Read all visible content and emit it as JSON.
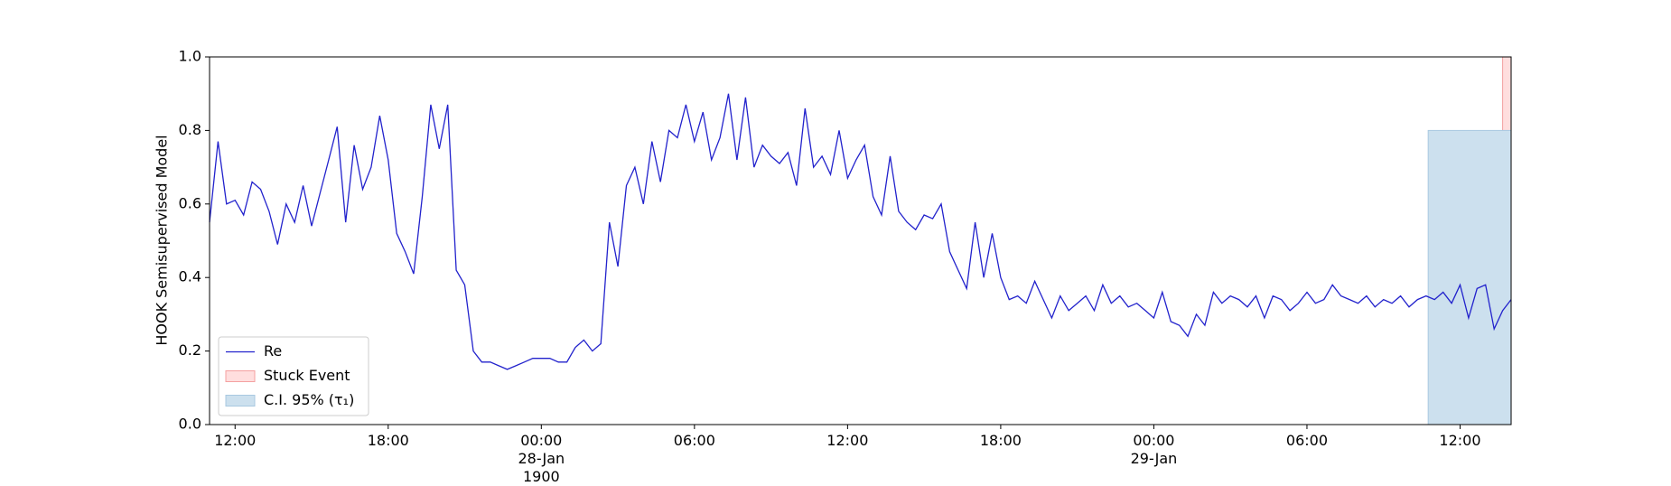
{
  "chart_data": {
    "type": "line",
    "ylabel": "HOOK Semisupervised Model",
    "xlim": [
      "1900-01-27 11:00",
      "1900-01-29 14:00"
    ],
    "xticks": [
      {
        "value": "1900-01-27 12:00",
        "label": "12:00"
      },
      {
        "value": "1900-01-27 18:00",
        "label": "18:00"
      },
      {
        "value": "1900-01-28 00:00",
        "label": "00:00\n28-Jan\n1900"
      },
      {
        "value": "1900-01-28 06:00",
        "label": "06:00"
      },
      {
        "value": "1900-01-28 12:00",
        "label": "12:00"
      },
      {
        "value": "1900-01-28 18:00",
        "label": "18:00"
      },
      {
        "value": "1900-01-29 00:00",
        "label": "00:00\n29-Jan"
      },
      {
        "value": "1900-01-29 06:00",
        "label": "06:00"
      },
      {
        "value": "1900-01-29 12:00",
        "label": "12:00"
      }
    ],
    "ylim": [
      0,
      1
    ],
    "yticks": [
      {
        "value": 0,
        "label": "0.0"
      },
      0.2,
      0.4,
      0.6,
      0.8,
      {
        "value": 1,
        "label": "1.0"
      }
    ],
    "grid": false,
    "legend": "lower left",
    "x": [
      "1900-01-27 11:00",
      "1900-01-27 11:20",
      "1900-01-27 11:40",
      "1900-01-27 12:00",
      "1900-01-27 12:20",
      "1900-01-27 12:40",
      "1900-01-27 13:00",
      "1900-01-27 13:20",
      "1900-01-27 13:40",
      "1900-01-27 14:00",
      "1900-01-27 14:20",
      "1900-01-27 14:40",
      "1900-01-27 15:00",
      "1900-01-27 15:20",
      "1900-01-27 15:40",
      "1900-01-27 16:00",
      "1900-01-27 16:20",
      "1900-01-27 16:40",
      "1900-01-27 17:00",
      "1900-01-27 17:20",
      "1900-01-27 17:40",
      "1900-01-27 18:00",
      "1900-01-27 18:20",
      "1900-01-27 18:40",
      "1900-01-27 19:00",
      "1900-01-27 19:20",
      "1900-01-27 19:40",
      "1900-01-27 20:00",
      "1900-01-27 20:20",
      "1900-01-27 20:40",
      "1900-01-27 21:00",
      "1900-01-27 21:20",
      "1900-01-27 21:40",
      "1900-01-27 22:00",
      "1900-01-27 22:20",
      "1900-01-27 22:40",
      "1900-01-27 23:00",
      "1900-01-27 23:20",
      "1900-01-27 23:40",
      "1900-01-28 00:00",
      "1900-01-28 00:20",
      "1900-01-28 00:40",
      "1900-01-28 01:00",
      "1900-01-28 01:20",
      "1900-01-28 01:40",
      "1900-01-28 02:00",
      "1900-01-28 02:20",
      "1900-01-28 02:40",
      "1900-01-28 03:00",
      "1900-01-28 03:20",
      "1900-01-28 03:40",
      "1900-01-28 04:00",
      "1900-01-28 04:20",
      "1900-01-28 04:40",
      "1900-01-28 05:00",
      "1900-01-28 05:20",
      "1900-01-28 05:40",
      "1900-01-28 06:00",
      "1900-01-28 06:20",
      "1900-01-28 06:40",
      "1900-01-28 07:00",
      "1900-01-28 07:20",
      "1900-01-28 07:40",
      "1900-01-28 08:00",
      "1900-01-28 08:20",
      "1900-01-28 08:40",
      "1900-01-28 09:00",
      "1900-01-28 09:20",
      "1900-01-28 09:40",
      "1900-01-28 10:00",
      "1900-01-28 10:20",
      "1900-01-28 10:40",
      "1900-01-28 11:00",
      "1900-01-28 11:20",
      "1900-01-28 11:40",
      "1900-01-28 12:00",
      "1900-01-28 12:20",
      "1900-01-28 12:40",
      "1900-01-28 13:00",
      "1900-01-28 13:20",
      "1900-01-28 13:40",
      "1900-01-28 14:00",
      "1900-01-28 14:20",
      "1900-01-28 14:40",
      "1900-01-28 15:00",
      "1900-01-28 15:20",
      "1900-01-28 15:40",
      "1900-01-28 16:00",
      "1900-01-28 16:20",
      "1900-01-28 16:40",
      "1900-01-28 17:00",
      "1900-01-28 17:20",
      "1900-01-28 17:40",
      "1900-01-28 18:00",
      "1900-01-28 18:20",
      "1900-01-28 18:40",
      "1900-01-28 19:00",
      "1900-01-28 19:20",
      "1900-01-28 19:40",
      "1900-01-28 20:00",
      "1900-01-28 20:20",
      "1900-01-28 20:40",
      "1900-01-28 21:00",
      "1900-01-28 21:20",
      "1900-01-28 21:40",
      "1900-01-28 22:00",
      "1900-01-28 22:20",
      "1900-01-28 22:40",
      "1900-01-28 23:00",
      "1900-01-28 23:20",
      "1900-01-28 23:40",
      "1900-01-29 00:00",
      "1900-01-29 00:20",
      "1900-01-29 00:40",
      "1900-01-29 01:00",
      "1900-01-29 01:20",
      "1900-01-29 01:40",
      "1900-01-29 02:00",
      "1900-01-29 02:20",
      "1900-01-29 02:40",
      "1900-01-29 03:00",
      "1900-01-29 03:20",
      "1900-01-29 03:40",
      "1900-01-29 04:00",
      "1900-01-29 04:20",
      "1900-01-29 04:40",
      "1900-01-29 05:00",
      "1900-01-29 05:20",
      "1900-01-29 05:40",
      "1900-01-29 06:00",
      "1900-01-29 06:20",
      "1900-01-29 06:40",
      "1900-01-29 07:00",
      "1900-01-29 07:20",
      "1900-01-29 07:40",
      "1900-01-29 08:00",
      "1900-01-29 08:20",
      "1900-01-29 08:40",
      "1900-01-29 09:00",
      "1900-01-29 09:20",
      "1900-01-29 09:40",
      "1900-01-29 10:00",
      "1900-01-29 10:20",
      "1900-01-29 10:40",
      "1900-01-29 11:00",
      "1900-01-29 11:20",
      "1900-01-29 11:40",
      "1900-01-29 12:00",
      "1900-01-29 12:20",
      "1900-01-29 12:40",
      "1900-01-29 13:00",
      "1900-01-29 13:20",
      "1900-01-29 13:40",
      "1900-01-29 14:00"
    ],
    "series": [
      {
        "name": "Re",
        "color": "#2222cc",
        "values": [
          0.55,
          0.77,
          0.6,
          0.61,
          0.57,
          0.66,
          0.64,
          0.58,
          0.49,
          0.6,
          0.55,
          0.65,
          0.54,
          0.63,
          0.72,
          0.81,
          0.55,
          0.76,
          0.64,
          0.7,
          0.84,
          0.72,
          0.52,
          0.47,
          0.41,
          0.62,
          0.87,
          0.75,
          0.87,
          0.42,
          0.38,
          0.2,
          0.17,
          0.17,
          0.16,
          0.15,
          0.16,
          0.17,
          0.18,
          0.18,
          0.18,
          0.17,
          0.17,
          0.21,
          0.23,
          0.2,
          0.22,
          0.55,
          0.43,
          0.65,
          0.7,
          0.6,
          0.77,
          0.66,
          0.8,
          0.78,
          0.87,
          0.77,
          0.85,
          0.72,
          0.78,
          0.9,
          0.72,
          0.89,
          0.7,
          0.76,
          0.73,
          0.71,
          0.74,
          0.65,
          0.86,
          0.7,
          0.73,
          0.68,
          0.8,
          0.67,
          0.72,
          0.76,
          0.62,
          0.57,
          0.73,
          0.58,
          0.55,
          0.53,
          0.57,
          0.56,
          0.6,
          0.47,
          0.42,
          0.37,
          0.55,
          0.4,
          0.52,
          0.4,
          0.34,
          0.35,
          0.33,
          0.39,
          0.34,
          0.29,
          0.35,
          0.31,
          0.33,
          0.35,
          0.31,
          0.38,
          0.33,
          0.35,
          0.32,
          0.33,
          0.31,
          0.29,
          0.36,
          0.28,
          0.27,
          0.24,
          0.3,
          0.27,
          0.36,
          0.33,
          0.35,
          0.34,
          0.32,
          0.35,
          0.29,
          0.35,
          0.34,
          0.31,
          0.33,
          0.36,
          0.33,
          0.34,
          0.38,
          0.35,
          0.34,
          0.33,
          0.35,
          0.32,
          0.34,
          0.33,
          0.35,
          0.32,
          0.34,
          0.35,
          0.34,
          0.36,
          0.33,
          0.38,
          0.29,
          0.37,
          0.38,
          0.26,
          0.31,
          0.34
        ]
      }
    ],
    "spans": [
      {
        "name": "Stuck Event",
        "color": "#ffdede",
        "edge": "#f4a0a0",
        "x": [
          "1900-01-29 13:40",
          "1900-01-29 14:00"
        ]
      },
      {
        "name": "C.I. 95% (τ₁)",
        "color": "#cce0ee",
        "edge": "#a8c8e0",
        "x": [
          "1900-01-29 10:45",
          "1900-01-29 14:00"
        ],
        "y": [
          0,
          0.8
        ]
      }
    ]
  }
}
